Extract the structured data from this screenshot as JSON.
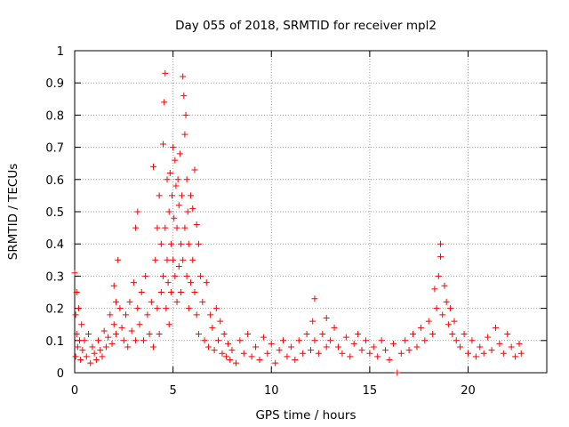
{
  "chart_data": {
    "type": "scatter",
    "title": "Day 055 of 2018, SRMTID for receiver mpl2",
    "xlabel": "GPS time / hours",
    "ylabel": "SRMTID / TECUs",
    "xlim": [
      0,
      24
    ],
    "ylim": [
      0,
      1
    ],
    "xticks": [
      "0",
      "5",
      "10",
      "15",
      "20"
    ],
    "xtick_values": [
      0,
      5,
      10,
      15,
      20
    ],
    "yticks": [
      "0",
      "0.1",
      "0.2",
      "0.3",
      "0.4",
      "0.5",
      "0.6",
      "0.7",
      "0.8",
      "0.9",
      "1"
    ],
    "ytick_values": [
      0,
      0.1,
      0.2,
      0.3,
      0.4,
      0.5,
      0.6,
      0.7,
      0.8,
      0.9,
      1
    ],
    "grid": true,
    "marker": "plus",
    "color": "#ff0000",
    "series": [
      {
        "name": "SRMTID",
        "x": [
          0.0,
          0.05,
          0.05,
          0.1,
          0.1,
          0.15,
          0.2,
          0.25,
          0.3,
          0.35,
          0.4,
          0.5,
          0.6,
          0.7,
          0.8,
          0.9,
          1.0,
          1.1,
          1.2,
          1.3,
          1.4,
          1.5,
          1.6,
          1.7,
          1.8,
          1.9,
          2.0,
          2.0,
          2.1,
          2.1,
          2.2,
          2.3,
          2.4,
          2.5,
          2.6,
          2.7,
          2.8,
          2.9,
          3.0,
          3.1,
          3.1,
          3.2,
          3.2,
          3.3,
          3.4,
          3.5,
          3.6,
          3.7,
          3.8,
          3.9,
          4.0,
          4.0,
          4.1,
          4.2,
          4.2,
          4.3,
          4.3,
          4.4,
          4.4,
          4.5,
          4.5,
          4.55,
          4.6,
          4.6,
          4.65,
          4.7,
          4.7,
          4.75,
          4.8,
          4.8,
          4.85,
          4.9,
          4.9,
          4.95,
          5.0,
          5.0,
          5.05,
          5.1,
          5.1,
          5.15,
          5.2,
          5.2,
          5.25,
          5.3,
          5.3,
          5.35,
          5.4,
          5.4,
          5.45,
          5.5,
          5.5,
          5.55,
          5.6,
          5.6,
          5.65,
          5.7,
          5.7,
          5.75,
          5.8,
          5.8,
          5.9,
          5.9,
          6.0,
          6.0,
          6.1,
          6.1,
          6.2,
          6.2,
          6.3,
          6.3,
          6.4,
          6.5,
          6.6,
          6.7,
          6.8,
          6.9,
          7.0,
          7.1,
          7.2,
          7.3,
          7.4,
          7.5,
          7.6,
          7.7,
          7.8,
          7.9,
          8.0,
          8.2,
          8.4,
          8.6,
          8.8,
          9.0,
          9.2,
          9.4,
          9.6,
          9.8,
          10.0,
          10.2,
          10.4,
          10.6,
          10.8,
          11.0,
          11.2,
          11.4,
          11.6,
          11.8,
          12.0,
          12.1,
          12.2,
          12.2,
          12.4,
          12.6,
          12.8,
          12.8,
          13.0,
          13.2,
          13.4,
          13.6,
          13.8,
          14.0,
          14.2,
          14.4,
          14.6,
          14.8,
          15.0,
          15.2,
          15.4,
          15.6,
          15.8,
          16.0,
          16.2,
          16.4,
          16.6,
          16.8,
          17.0,
          17.2,
          17.4,
          17.6,
          17.8,
          18.0,
          18.2,
          18.3,
          18.4,
          18.5,
          18.6,
          18.6,
          18.7,
          18.8,
          18.9,
          19.0,
          19.1,
          19.2,
          19.3,
          19.4,
          19.6,
          19.8,
          20.0,
          20.2,
          20.4,
          20.6,
          20.8,
          21.0,
          21.2,
          21.4,
          21.6,
          21.8,
          22.0,
          22.2,
          22.4,
          22.6,
          22.7
        ],
        "y": [
          0.31,
          0.18,
          0.05,
          0.25,
          0.12,
          0.08,
          0.2,
          0.1,
          0.04,
          0.15,
          0.07,
          0.1,
          0.05,
          0.12,
          0.03,
          0.08,
          0.06,
          0.04,
          0.1,
          0.07,
          0.05,
          0.13,
          0.08,
          0.11,
          0.18,
          0.09,
          0.27,
          0.15,
          0.22,
          0.12,
          0.35,
          0.2,
          0.14,
          0.1,
          0.18,
          0.08,
          0.22,
          0.13,
          0.28,
          0.1,
          0.45,
          0.2,
          0.5,
          0.15,
          0.25,
          0.1,
          0.3,
          0.18,
          0.12,
          0.22,
          0.64,
          0.08,
          0.35,
          0.45,
          0.2,
          0.55,
          0.12,
          0.4,
          0.25,
          0.71,
          0.3,
          0.84,
          0.93,
          0.45,
          0.2,
          0.6,
          0.35,
          0.28,
          0.5,
          0.15,
          0.62,
          0.4,
          0.25,
          0.55,
          0.7,
          0.35,
          0.48,
          0.66,
          0.3,
          0.58,
          0.45,
          0.22,
          0.6,
          0.52,
          0.33,
          0.68,
          0.4,
          0.25,
          0.55,
          0.92,
          0.35,
          0.86,
          0.74,
          0.45,
          0.8,
          0.6,
          0.3,
          0.5,
          0.4,
          0.2,
          0.55,
          0.28,
          0.51,
          0.35,
          0.63,
          0.25,
          0.46,
          0.18,
          0.4,
          0.12,
          0.3,
          0.22,
          0.1,
          0.28,
          0.08,
          0.18,
          0.14,
          0.07,
          0.2,
          0.1,
          0.16,
          0.06,
          0.12,
          0.05,
          0.09,
          0.04,
          0.07,
          0.03,
          0.1,
          0.06,
          0.12,
          0.05,
          0.08,
          0.04,
          0.11,
          0.06,
          0.09,
          0.03,
          0.07,
          0.1,
          0.05,
          0.08,
          0.04,
          0.1,
          0.06,
          0.12,
          0.07,
          0.16,
          0.23,
          0.1,
          0.06,
          0.12,
          0.08,
          0.17,
          0.1,
          0.14,
          0.08,
          0.06,
          0.11,
          0.05,
          0.09,
          0.12,
          0.07,
          0.1,
          0.06,
          0.08,
          0.05,
          0.1,
          0.07,
          0.04,
          0.09,
          0.0,
          0.06,
          0.1,
          0.07,
          0.12,
          0.08,
          0.14,
          0.1,
          0.16,
          0.12,
          0.26,
          0.2,
          0.3,
          0.36,
          0.4,
          0.18,
          0.27,
          0.22,
          0.15,
          0.2,
          0.12,
          0.16,
          0.1,
          0.08,
          0.12,
          0.06,
          0.1,
          0.05,
          0.08,
          0.06,
          0.11,
          0.07,
          0.14,
          0.09,
          0.06,
          0.12,
          0.08,
          0.05,
          0.09,
          0.06
        ]
      }
    ]
  }
}
